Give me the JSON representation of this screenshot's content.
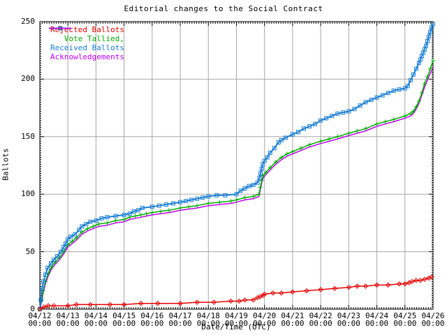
{
  "chart_data": {
    "type": "line",
    "title": "Editorial changes to the Social Contract",
    "xlabel": "Date/Time (UTC)",
    "ylabel": "Ballots",
    "ylim": [
      0,
      250
    ],
    "y_ticks": [
      0,
      50,
      100,
      150,
      200,
      250
    ],
    "x_tick_labels": [
      "04/12",
      "04/13",
      "04/14",
      "04/15",
      "04/16",
      "04/17",
      "04/18",
      "04/19",
      "04/20",
      "04/21",
      "04/22",
      "04/23",
      "04/24",
      "04/25",
      "04/26"
    ],
    "x_tick_sublabel": "00:00",
    "x_range_days": 14,
    "grid": true,
    "legend_position": "top-left",
    "colors": {
      "background": "#ffffff",
      "frame": "#000000",
      "grid": "#a6a6a6",
      "text": "#000000"
    },
    "series": [
      {
        "name": "Rejected Ballots",
        "color": "#e60000",
        "marker": "diamond",
        "points": [
          [
            0,
            0
          ],
          [
            0.15,
            2
          ],
          [
            0.3,
            3
          ],
          [
            0.5,
            3
          ],
          [
            1.0,
            3
          ],
          [
            1.3,
            4
          ],
          [
            1.8,
            4
          ],
          [
            2.5,
            4
          ],
          [
            3.0,
            4
          ],
          [
            3.6,
            5
          ],
          [
            4.2,
            5
          ],
          [
            5.0,
            5
          ],
          [
            5.6,
            6
          ],
          [
            6.2,
            6
          ],
          [
            6.8,
            7
          ],
          [
            7.1,
            7
          ],
          [
            7.3,
            8
          ],
          [
            7.6,
            8
          ],
          [
            7.75,
            10
          ],
          [
            7.85,
            11
          ],
          [
            7.95,
            12
          ],
          [
            8.0,
            13
          ],
          [
            8.3,
            14
          ],
          [
            8.6,
            14
          ],
          [
            9.0,
            15
          ],
          [
            9.5,
            16
          ],
          [
            10.0,
            17
          ],
          [
            10.5,
            18
          ],
          [
            11.0,
            19
          ],
          [
            11.3,
            20
          ],
          [
            11.6,
            20
          ],
          [
            12.0,
            21
          ],
          [
            12.4,
            21
          ],
          [
            12.8,
            22
          ],
          [
            13.0,
            22
          ],
          [
            13.15,
            23
          ],
          [
            13.25,
            24
          ],
          [
            13.4,
            25
          ],
          [
            13.55,
            25
          ],
          [
            13.7,
            26
          ],
          [
            13.85,
            27
          ],
          [
            13.95,
            28
          ]
        ]
      },
      {
        "name": "   Vote Tallied,",
        "color": "#00ad00",
        "marker": "plus",
        "points": [
          [
            0,
            0
          ],
          [
            0.06,
            8
          ],
          [
            0.12,
            16
          ],
          [
            0.2,
            24
          ],
          [
            0.3,
            31
          ],
          [
            0.42,
            37
          ],
          [
            0.55,
            41
          ],
          [
            0.7,
            45
          ],
          [
            0.85,
            50
          ],
          [
            1.0,
            56
          ],
          [
            1.15,
            59
          ],
          [
            1.3,
            62
          ],
          [
            1.5,
            67
          ],
          [
            1.7,
            70
          ],
          [
            1.9,
            72
          ],
          [
            2.1,
            74
          ],
          [
            2.4,
            75
          ],
          [
            2.7,
            77
          ],
          [
            3.0,
            78
          ],
          [
            3.2,
            80
          ],
          [
            3.4,
            81
          ],
          [
            3.6,
            82
          ],
          [
            3.8,
            83
          ],
          [
            4.0,
            84
          ],
          [
            4.3,
            85
          ],
          [
            4.6,
            86
          ],
          [
            5.0,
            88
          ],
          [
            5.3,
            89
          ],
          [
            5.6,
            90
          ],
          [
            6.0,
            92
          ],
          [
            6.4,
            93
          ],
          [
            6.8,
            94
          ],
          [
            7.0,
            95
          ],
          [
            7.3,
            97
          ],
          [
            7.6,
            98
          ],
          [
            7.8,
            100
          ],
          [
            7.85,
            106
          ],
          [
            7.9,
            112
          ],
          [
            7.95,
            116
          ],
          [
            8.05,
            119
          ],
          [
            8.2,
            123
          ],
          [
            8.4,
            128
          ],
          [
            8.6,
            132
          ],
          [
            8.8,
            135
          ],
          [
            9.0,
            137
          ],
          [
            9.3,
            140
          ],
          [
            9.6,
            143
          ],
          [
            10.0,
            146
          ],
          [
            10.3,
            148
          ],
          [
            10.6,
            150
          ],
          [
            11.0,
            153
          ],
          [
            11.3,
            155
          ],
          [
            11.6,
            157
          ],
          [
            12.0,
            161
          ],
          [
            12.3,
            163
          ],
          [
            12.6,
            165
          ],
          [
            13.0,
            168
          ],
          [
            13.2,
            170
          ],
          [
            13.3,
            172
          ],
          [
            13.4,
            176
          ],
          [
            13.5,
            181
          ],
          [
            13.6,
            188
          ],
          [
            13.7,
            196
          ],
          [
            13.8,
            202
          ],
          [
            13.9,
            209
          ],
          [
            14.0,
            216
          ]
        ]
      },
      {
        "name": "Received Ballots",
        "color": "#1a7fd4",
        "marker": "square",
        "points": [
          [
            0,
            0
          ],
          [
            0.04,
            8
          ],
          [
            0.08,
            18
          ],
          [
            0.13,
            24
          ],
          [
            0.2,
            30
          ],
          [
            0.28,
            36
          ],
          [
            0.4,
            40
          ],
          [
            0.5,
            43
          ],
          [
            0.62,
            46
          ],
          [
            0.75,
            50
          ],
          [
            0.85,
            54
          ],
          [
            0.92,
            57
          ],
          [
            1.0,
            61
          ],
          [
            1.1,
            63
          ],
          [
            1.25,
            65
          ],
          [
            1.4,
            69
          ],
          [
            1.5,
            72
          ],
          [
            1.65,
            74
          ],
          [
            1.8,
            76
          ],
          [
            2.0,
            77
          ],
          [
            2.2,
            79
          ],
          [
            2.4,
            80
          ],
          [
            2.7,
            81
          ],
          [
            3.0,
            82
          ],
          [
            3.2,
            83
          ],
          [
            3.35,
            85
          ],
          [
            3.5,
            86
          ],
          [
            3.65,
            88
          ],
          [
            4.0,
            89
          ],
          [
            4.25,
            90
          ],
          [
            4.5,
            91
          ],
          [
            4.75,
            92
          ],
          [
            5.0,
            93
          ],
          [
            5.2,
            94
          ],
          [
            5.4,
            95
          ],
          [
            5.6,
            96
          ],
          [
            5.8,
            97
          ],
          [
            6.0,
            98
          ],
          [
            6.3,
            99
          ],
          [
            6.6,
            99
          ],
          [
            7.0,
            100
          ],
          [
            7.15,
            103
          ],
          [
            7.3,
            105
          ],
          [
            7.45,
            107
          ],
          [
            7.6,
            108
          ],
          [
            7.75,
            110
          ],
          [
            7.82,
            114
          ],
          [
            7.86,
            118
          ],
          [
            7.9,
            122
          ],
          [
            7.94,
            126
          ],
          [
            8.0,
            129
          ],
          [
            8.1,
            132
          ],
          [
            8.2,
            136
          ],
          [
            8.35,
            140
          ],
          [
            8.5,
            145
          ],
          [
            8.6,
            147
          ],
          [
            8.75,
            149
          ],
          [
            9.0,
            152
          ],
          [
            9.2,
            154
          ],
          [
            9.4,
            157
          ],
          [
            9.6,
            159
          ],
          [
            9.8,
            161
          ],
          [
            10.0,
            164
          ],
          [
            10.2,
            166
          ],
          [
            10.4,
            168
          ],
          [
            10.6,
            170
          ],
          [
            10.8,
            171
          ],
          [
            11.0,
            172
          ],
          [
            11.2,
            174
          ],
          [
            11.4,
            177
          ],
          [
            11.6,
            180
          ],
          [
            11.8,
            182
          ],
          [
            12.0,
            184
          ],
          [
            12.2,
            186
          ],
          [
            12.4,
            188
          ],
          [
            12.6,
            190
          ],
          [
            12.8,
            191
          ],
          [
            13.0,
            192
          ],
          [
            13.1,
            194
          ],
          [
            13.2,
            199
          ],
          [
            13.3,
            204
          ],
          [
            13.4,
            209
          ],
          [
            13.5,
            214
          ],
          [
            13.55,
            217
          ],
          [
            13.6,
            220
          ],
          [
            13.65,
            223
          ],
          [
            13.7,
            226
          ],
          [
            13.75,
            229
          ],
          [
            13.8,
            233
          ],
          [
            13.85,
            237
          ],
          [
            13.9,
            241
          ],
          [
            13.95,
            245
          ],
          [
            14.0,
            248
          ]
        ]
      },
      {
        "name": "Acknowledgements",
        "color": "#c000f0",
        "marker": "none",
        "points": [
          [
            0,
            0
          ],
          [
            0.06,
            6
          ],
          [
            0.12,
            14
          ],
          [
            0.2,
            22
          ],
          [
            0.3,
            29
          ],
          [
            0.42,
            35
          ],
          [
            0.55,
            39
          ],
          [
            0.7,
            43
          ],
          [
            0.85,
            48
          ],
          [
            1.0,
            54
          ],
          [
            1.15,
            57
          ],
          [
            1.3,
            60
          ],
          [
            1.5,
            65
          ],
          [
            1.7,
            68
          ],
          [
            1.9,
            70
          ],
          [
            2.1,
            72
          ],
          [
            2.4,
            73
          ],
          [
            2.7,
            75
          ],
          [
            3.0,
            76
          ],
          [
            3.2,
            78
          ],
          [
            3.4,
            79
          ],
          [
            3.6,
            80
          ],
          [
            3.8,
            81
          ],
          [
            4.0,
            82
          ],
          [
            4.3,
            83
          ],
          [
            4.6,
            84
          ],
          [
            5.0,
            86
          ],
          [
            5.3,
            87
          ],
          [
            5.6,
            88
          ],
          [
            6.0,
            90
          ],
          [
            6.4,
            91
          ],
          [
            6.8,
            92
          ],
          [
            7.0,
            93
          ],
          [
            7.3,
            95
          ],
          [
            7.6,
            96
          ],
          [
            7.8,
            98
          ],
          [
            7.85,
            104
          ],
          [
            7.9,
            110
          ],
          [
            7.95,
            114
          ],
          [
            8.05,
            117
          ],
          [
            8.2,
            121
          ],
          [
            8.4,
            126
          ],
          [
            8.6,
            130
          ],
          [
            8.8,
            133
          ],
          [
            9.0,
            135
          ],
          [
            9.3,
            138
          ],
          [
            9.6,
            141
          ],
          [
            10.0,
            144
          ],
          [
            10.3,
            146
          ],
          [
            10.6,
            148
          ],
          [
            11.0,
            151
          ],
          [
            11.3,
            153
          ],
          [
            11.6,
            155
          ],
          [
            12.0,
            159
          ],
          [
            12.3,
            161
          ],
          [
            12.6,
            163
          ],
          [
            13.0,
            166
          ],
          [
            13.2,
            168
          ],
          [
            13.3,
            170
          ],
          [
            13.4,
            174
          ],
          [
            13.5,
            179
          ],
          [
            13.6,
            186
          ],
          [
            13.7,
            193
          ],
          [
            13.8,
            199
          ],
          [
            13.9,
            205
          ],
          [
            14.0,
            210
          ]
        ]
      }
    ]
  }
}
